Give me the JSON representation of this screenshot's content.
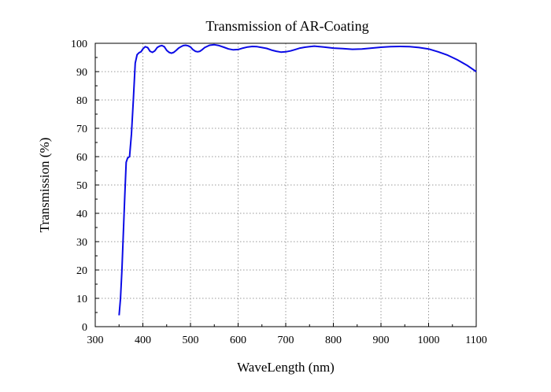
{
  "chart_data": {
    "type": "line",
    "title": "Transmission of AR-Coating",
    "xlabel": "WaveLength (nm)",
    "ylabel": "Transmission (%)",
    "xlim": [
      300,
      1100
    ],
    "ylim": [
      0,
      100
    ],
    "x_ticks": [
      300,
      400,
      500,
      600,
      700,
      800,
      900,
      1000,
      1100
    ],
    "y_ticks": [
      0,
      10,
      20,
      30,
      40,
      50,
      60,
      70,
      80,
      90,
      100
    ],
    "grid": true,
    "line_color": "#0a0ae6",
    "series": [
      {
        "x": [
          350,
          353,
          356,
          359,
          362,
          365,
          368,
          372,
          376,
          380,
          384,
          388,
          392,
          396,
          400,
          405,
          410,
          415,
          420,
          425,
          430,
          435,
          440,
          445,
          450,
          455,
          460,
          465,
          470,
          475,
          480,
          485,
          490,
          495,
          500,
          505,
          510,
          515,
          520,
          525,
          530,
          540,
          550,
          560,
          570,
          580,
          590,
          600,
          610,
          620,
          630,
          640,
          650,
          660,
          670,
          680,
          690,
          700,
          710,
          720,
          730,
          740,
          750,
          760,
          780,
          800,
          820,
          840,
          860,
          880,
          900,
          920,
          940,
          960,
          980,
          1000,
          1020,
          1040,
          1060,
          1080,
          1100
        ],
        "y": [
          4,
          10,
          20,
          33,
          46,
          58,
          59.5,
          60,
          68,
          80,
          93,
          96,
          96.7,
          97,
          98,
          98.8,
          98.5,
          97.2,
          96.8,
          97.3,
          98.5,
          99,
          99.2,
          98.8,
          97.5,
          96.8,
          96.5,
          96.8,
          97.5,
          98.3,
          98.8,
          99.2,
          99.3,
          99.1,
          98.7,
          97.8,
          97.2,
          97,
          97.2,
          97.8,
          98.5,
          99.3,
          99.5,
          99.2,
          98.6,
          98,
          97.7,
          97.8,
          98.3,
          98.7,
          98.9,
          98.8,
          98.5,
          98.2,
          97.6,
          97.2,
          96.9,
          97.0,
          97.3,
          97.8,
          98.3,
          98.6,
          98.8,
          99.0,
          98.7,
          98.3,
          98.1,
          97.9,
          98.0,
          98.3,
          98.6,
          98.8,
          98.9,
          98.8,
          98.5,
          98.0,
          97.0,
          95.8,
          94.2,
          92.3,
          90
        ]
      }
    ]
  }
}
